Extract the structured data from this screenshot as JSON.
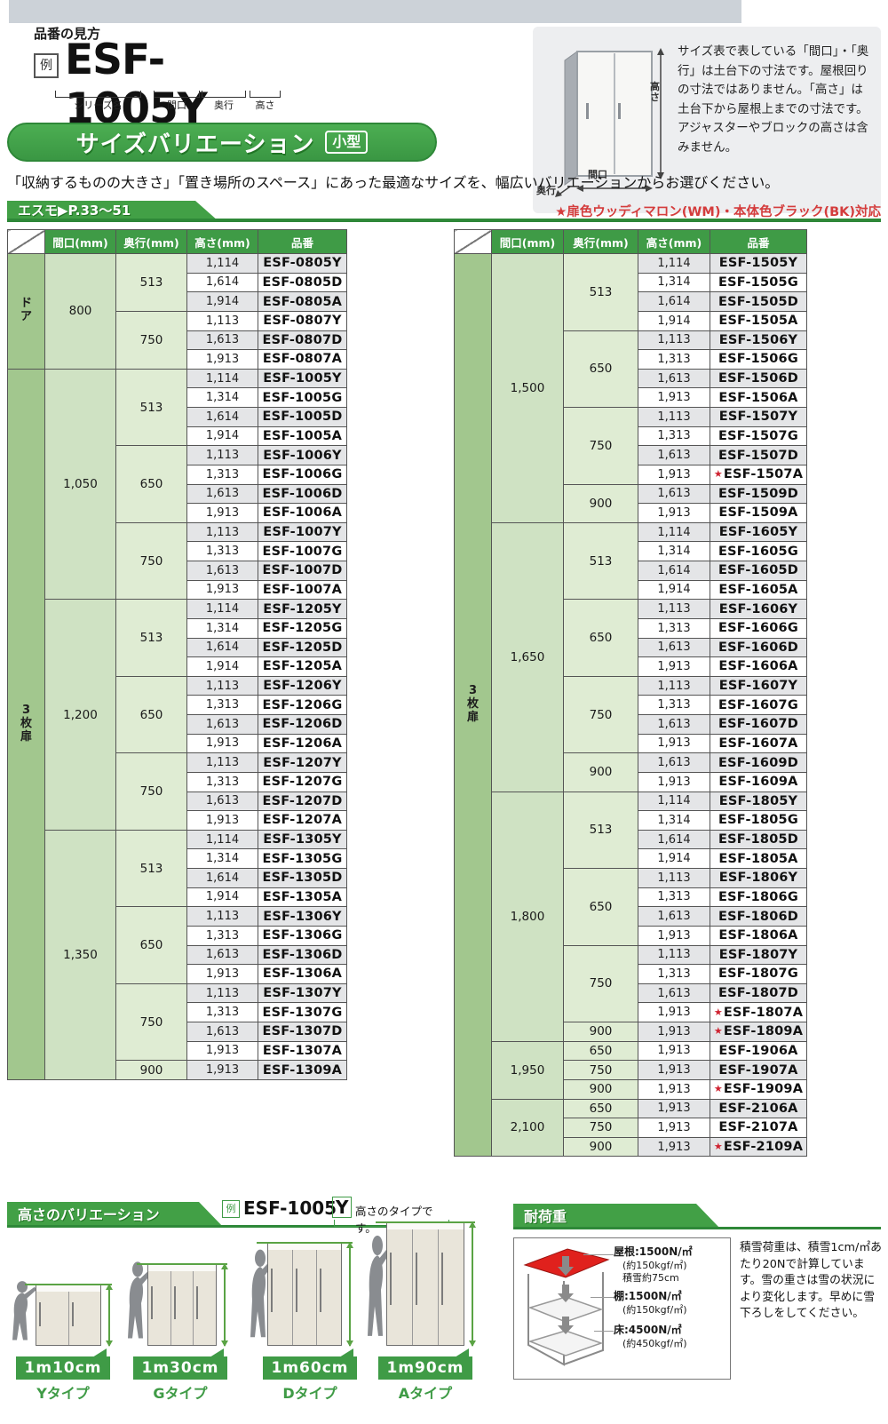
{
  "header": {
    "page_label": "品番の見方"
  },
  "example_top": {
    "prefix": "例",
    "code": "ESF-1005Y",
    "segments": [
      "シリーズ名",
      "間口",
      "奥行",
      "高さ"
    ]
  },
  "info_box": {
    "dim_height": "高さ",
    "dim_depth": "奥行",
    "dim_width": "間口",
    "text": "サイズ表で表している「間口」・「奥行」は土台下の寸法です。屋根回りの寸法ではありません。「高さ」は土台下から屋根上までの寸法です。アジャスターやブロックの高さは含みません。"
  },
  "title_bar": {
    "title": "サイズバリエーション",
    "badge": "小型"
  },
  "lead": "「収納するものの大きさ」「置き場所のスペース」にあった最適なサイズを、幅広いバリエーションからお選びください。",
  "series_bar": {
    "label": "エスモ▶P.33〜51",
    "note": "★扉色ウッディマロン(WM)・本体色ブラック(BK)対応"
  },
  "table_headers": [
    "間口(mm)",
    "奥行(mm)",
    "高さ(mm)",
    "品番"
  ],
  "left_table": {
    "groups": [
      {
        "door": "ドア",
        "widths": [
          {
            "w": "800",
            "depths": [
              {
                "d": "513",
                "rows": [
                  {
                    "h": "1,114",
                    "code": "ESF-0805Y"
                  },
                  {
                    "h": "1,614",
                    "code": "ESF-0805D"
                  },
                  {
                    "h": "1,914",
                    "code": "ESF-0805A"
                  }
                ]
              },
              {
                "d": "750",
                "rows": [
                  {
                    "h": "1,113",
                    "code": "ESF-0807Y"
                  },
                  {
                    "h": "1,613",
                    "code": "ESF-0807D"
                  },
                  {
                    "h": "1,913",
                    "code": "ESF-0807A"
                  }
                ]
              }
            ]
          }
        ]
      },
      {
        "door": "3枚扉",
        "widths": [
          {
            "w": "1,050",
            "depths": [
              {
                "d": "513",
                "rows": [
                  {
                    "h": "1,114",
                    "code": "ESF-1005Y"
                  },
                  {
                    "h": "1,314",
                    "code": "ESF-1005G"
                  },
                  {
                    "h": "1,614",
                    "code": "ESF-1005D"
                  },
                  {
                    "h": "1,914",
                    "code": "ESF-1005A"
                  }
                ]
              },
              {
                "d": "650",
                "rows": [
                  {
                    "h": "1,113",
                    "code": "ESF-1006Y"
                  },
                  {
                    "h": "1,313",
                    "code": "ESF-1006G"
                  },
                  {
                    "h": "1,613",
                    "code": "ESF-1006D"
                  },
                  {
                    "h": "1,913",
                    "code": "ESF-1006A"
                  }
                ]
              },
              {
                "d": "750",
                "rows": [
                  {
                    "h": "1,113",
                    "code": "ESF-1007Y"
                  },
                  {
                    "h": "1,313",
                    "code": "ESF-1007G"
                  },
                  {
                    "h": "1,613",
                    "code": "ESF-1007D"
                  },
                  {
                    "h": "1,913",
                    "code": "ESF-1007A"
                  }
                ]
              }
            ]
          },
          {
            "w": "1,200",
            "depths": [
              {
                "d": "513",
                "rows": [
                  {
                    "h": "1,114",
                    "code": "ESF-1205Y"
                  },
                  {
                    "h": "1,314",
                    "code": "ESF-1205G"
                  },
                  {
                    "h": "1,614",
                    "code": "ESF-1205D"
                  },
                  {
                    "h": "1,914",
                    "code": "ESF-1205A"
                  }
                ]
              },
              {
                "d": "650",
                "rows": [
                  {
                    "h": "1,113",
                    "code": "ESF-1206Y"
                  },
                  {
                    "h": "1,313",
                    "code": "ESF-1206G"
                  },
                  {
                    "h": "1,613",
                    "code": "ESF-1206D"
                  },
                  {
                    "h": "1,913",
                    "code": "ESF-1206A"
                  }
                ]
              },
              {
                "d": "750",
                "rows": [
                  {
                    "h": "1,113",
                    "code": "ESF-1207Y"
                  },
                  {
                    "h": "1,313",
                    "code": "ESF-1207G"
                  },
                  {
                    "h": "1,613",
                    "code": "ESF-1207D"
                  },
                  {
                    "h": "1,913",
                    "code": "ESF-1207A"
                  }
                ]
              }
            ]
          },
          {
            "w": "1,350",
            "depths": [
              {
                "d": "513",
                "rows": [
                  {
                    "h": "1,114",
                    "code": "ESF-1305Y"
                  },
                  {
                    "h": "1,314",
                    "code": "ESF-1305G"
                  },
                  {
                    "h": "1,614",
                    "code": "ESF-1305D"
                  },
                  {
                    "h": "1,914",
                    "code": "ESF-1305A"
                  }
                ]
              },
              {
                "d": "650",
                "rows": [
                  {
                    "h": "1,113",
                    "code": "ESF-1306Y"
                  },
                  {
                    "h": "1,313",
                    "code": "ESF-1306G"
                  },
                  {
                    "h": "1,613",
                    "code": "ESF-1306D"
                  },
                  {
                    "h": "1,913",
                    "code": "ESF-1306A"
                  }
                ]
              },
              {
                "d": "750",
                "rows": [
                  {
                    "h": "1,113",
                    "code": "ESF-1307Y"
                  },
                  {
                    "h": "1,313",
                    "code": "ESF-1307G"
                  },
                  {
                    "h": "1,613",
                    "code": "ESF-1307D"
                  },
                  {
                    "h": "1,913",
                    "code": "ESF-1307A"
                  }
                ]
              },
              {
                "d": "900",
                "rows": [
                  {
                    "h": "1,913",
                    "code": "ESF-1309A"
                  }
                ]
              }
            ]
          }
        ]
      }
    ]
  },
  "right_table": {
    "groups": [
      {
        "door": "3枚扉",
        "widths": [
          {
            "w": "1,500",
            "depths": [
              {
                "d": "513",
                "rows": [
                  {
                    "h": "1,114",
                    "code": "ESF-1505Y"
                  },
                  {
                    "h": "1,314",
                    "code": "ESF-1505G"
                  },
                  {
                    "h": "1,614",
                    "code": "ESF-1505D"
                  },
                  {
                    "h": "1,914",
                    "code": "ESF-1505A"
                  }
                ]
              },
              {
                "d": "650",
                "rows": [
                  {
                    "h": "1,113",
                    "code": "ESF-1506Y"
                  },
                  {
                    "h": "1,313",
                    "code": "ESF-1506G"
                  },
                  {
                    "h": "1,613",
                    "code": "ESF-1506D"
                  },
                  {
                    "h": "1,913",
                    "code": "ESF-1506A"
                  }
                ]
              },
              {
                "d": "750",
                "rows": [
                  {
                    "h": "1,113",
                    "code": "ESF-1507Y"
                  },
                  {
                    "h": "1,313",
                    "code": "ESF-1507G"
                  },
                  {
                    "h": "1,613",
                    "code": "ESF-1507D"
                  },
                  {
                    "h": "1,913",
                    "code": "ESF-1507A",
                    "star": true
                  }
                ]
              },
              {
                "d": "900",
                "rows": [
                  {
                    "h": "1,613",
                    "code": "ESF-1509D"
                  },
                  {
                    "h": "1,913",
                    "code": "ESF-1509A"
                  }
                ]
              }
            ]
          },
          {
            "w": "1,650",
            "depths": [
              {
                "d": "513",
                "rows": [
                  {
                    "h": "1,114",
                    "code": "ESF-1605Y"
                  },
                  {
                    "h": "1,314",
                    "code": "ESF-1605G"
                  },
                  {
                    "h": "1,614",
                    "code": "ESF-1605D"
                  },
                  {
                    "h": "1,914",
                    "code": "ESF-1605A"
                  }
                ]
              },
              {
                "d": "650",
                "rows": [
                  {
                    "h": "1,113",
                    "code": "ESF-1606Y"
                  },
                  {
                    "h": "1,313",
                    "code": "ESF-1606G"
                  },
                  {
                    "h": "1,613",
                    "code": "ESF-1606D"
                  },
                  {
                    "h": "1,913",
                    "code": "ESF-1606A"
                  }
                ]
              },
              {
                "d": "750",
                "rows": [
                  {
                    "h": "1,113",
                    "code": "ESF-1607Y"
                  },
                  {
                    "h": "1,313",
                    "code": "ESF-1607G"
                  },
                  {
                    "h": "1,613",
                    "code": "ESF-1607D"
                  },
                  {
                    "h": "1,913",
                    "code": "ESF-1607A"
                  }
                ]
              },
              {
                "d": "900",
                "rows": [
                  {
                    "h": "1,613",
                    "code": "ESF-1609D"
                  },
                  {
                    "h": "1,913",
                    "code": "ESF-1609A"
                  }
                ]
              }
            ]
          },
          {
            "w": "1,800",
            "depths": [
              {
                "d": "513",
                "rows": [
                  {
                    "h": "1,114",
                    "code": "ESF-1805Y"
                  },
                  {
                    "h": "1,314",
                    "code": "ESF-1805G"
                  },
                  {
                    "h": "1,614",
                    "code": "ESF-1805D"
                  },
                  {
                    "h": "1,914",
                    "code": "ESF-1805A"
                  }
                ]
              },
              {
                "d": "650",
                "rows": [
                  {
                    "h": "1,113",
                    "code": "ESF-1806Y"
                  },
                  {
                    "h": "1,313",
                    "code": "ESF-1806G"
                  },
                  {
                    "h": "1,613",
                    "code": "ESF-1806D"
                  },
                  {
                    "h": "1,913",
                    "code": "ESF-1806A"
                  }
                ]
              },
              {
                "d": "750",
                "rows": [
                  {
                    "h": "1,113",
                    "code": "ESF-1807Y"
                  },
                  {
                    "h": "1,313",
                    "code": "ESF-1807G"
                  },
                  {
                    "h": "1,613",
                    "code": "ESF-1807D"
                  },
                  {
                    "h": "1,913",
                    "code": "ESF-1807A",
                    "star": true
                  }
                ]
              },
              {
                "d": "900",
                "rows": [
                  {
                    "h": "1,913",
                    "code": "ESF-1809A",
                    "star": true
                  }
                ]
              }
            ]
          },
          {
            "w": "1,950",
            "depths": [
              {
                "d": "650",
                "rows": [
                  {
                    "h": "1,913",
                    "code": "ESF-1906A"
                  }
                ]
              },
              {
                "d": "750",
                "rows": [
                  {
                    "h": "1,913",
                    "code": "ESF-1907A"
                  }
                ]
              },
              {
                "d": "900",
                "rows": [
                  {
                    "h": "1,913",
                    "code": "ESF-1909A",
                    "star": true
                  }
                ]
              }
            ]
          },
          {
            "w": "2,100",
            "depths": [
              {
                "d": "650",
                "rows": [
                  {
                    "h": "1,913",
                    "code": "ESF-2106A"
                  }
                ]
              },
              {
                "d": "750",
                "rows": [
                  {
                    "h": "1,913",
                    "code": "ESF-2107A"
                  }
                ]
              },
              {
                "d": "900",
                "rows": [
                  {
                    "h": "1,913",
                    "code": "ESF-2109A",
                    "star": true
                  }
                ]
              }
            ]
          }
        ]
      }
    ]
  },
  "height_variation": {
    "title": "高さのバリエーション",
    "example": {
      "prefix": "例",
      "code": "ESF-1005",
      "type": "Y",
      "note": "高さのタイプです。"
    },
    "types": [
      {
        "height": "1m10cm",
        "label": "Yタイプ"
      },
      {
        "height": "1m30cm",
        "label": "Gタイプ"
      },
      {
        "height": "1m60cm",
        "label": "Dタイプ"
      },
      {
        "height": "1m90cm",
        "label": "Aタイプ"
      }
    ]
  },
  "load_capacity": {
    "title": "耐荷重",
    "items": [
      {
        "label": "屋根:1500N/㎡",
        "sub": "(約150kgf/㎡)",
        "extra": "積雪約75cm"
      },
      {
        "label": "棚:1500N/㎡",
        "sub": "(約150kgf/㎡)"
      },
      {
        "label": "床:4500N/㎡",
        "sub": "(約450kgf/㎡)"
      }
    ],
    "note": "積雪荷重は、積雪1cm/㎡あたり20Nで計算しています。雪の重さは雪の状況により変化します。早めに雪下ろしをしてください。"
  },
  "colors": {
    "green": "#3f9b46",
    "dark_green": "#2e8838",
    "door_cell_green": "#a2c78e",
    "width_cell_green": "#cfe2c3",
    "depth_cell_green": "#dfecd3",
    "alt_row_gray": "#e4e5e7",
    "note_red": "#d43c3c",
    "star_red": "#cf2230",
    "roof_red": "#e0211d"
  }
}
